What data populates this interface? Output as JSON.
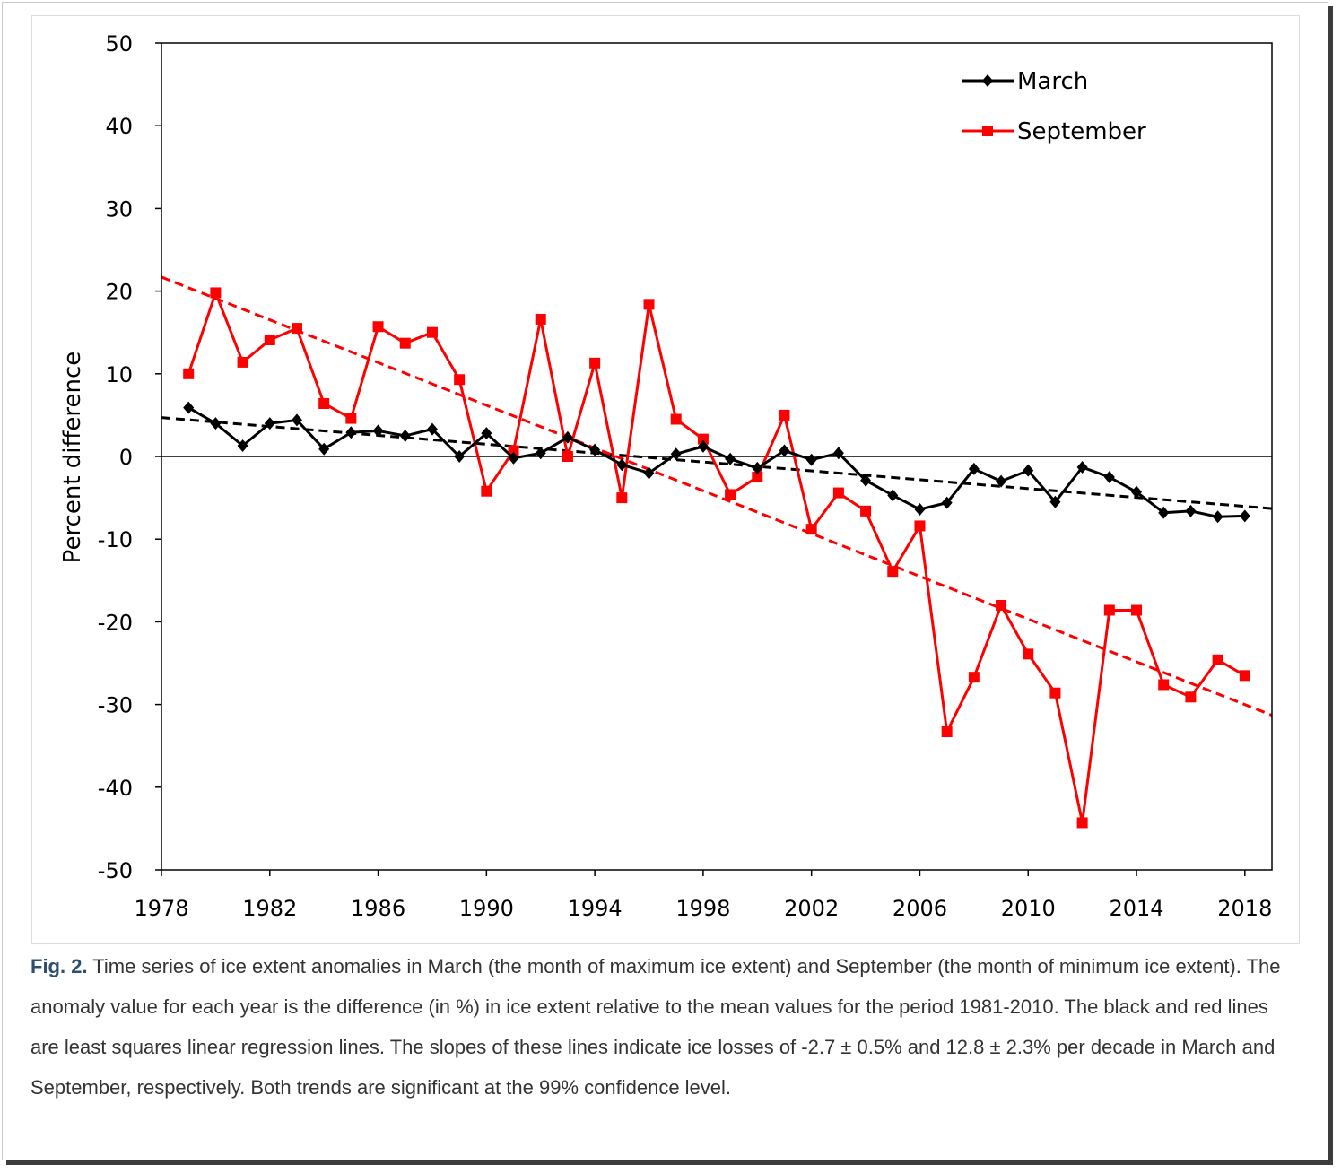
{
  "chart_data": {
    "type": "line",
    "title": "",
    "xlabel": "",
    "ylabel": "Percent difference",
    "xlim": [
      1978,
      2019
    ],
    "ylim": [
      -50,
      50
    ],
    "xticks": [
      1978,
      1982,
      1986,
      1990,
      1994,
      1998,
      2002,
      2006,
      2010,
      2014,
      2018
    ],
    "yticks": [
      50,
      40,
      30,
      20,
      10,
      0,
      -10,
      -20,
      -30,
      -40,
      -50
    ],
    "grid": false,
    "legend_position": "top-right",
    "x": [
      1979,
      1980,
      1981,
      1982,
      1983,
      1984,
      1985,
      1986,
      1987,
      1988,
      1989,
      1990,
      1991,
      1992,
      1993,
      1994,
      1995,
      1996,
      1997,
      1998,
      1999,
      2000,
      2001,
      2002,
      2003,
      2004,
      2005,
      2006,
      2007,
      2008,
      2009,
      2010,
      2011,
      2012,
      2013,
      2014,
      2015,
      2016,
      2017,
      2018
    ],
    "series": [
      {
        "name": "March",
        "color": "#000000",
        "marker": "diamond",
        "values": [
          5.9,
          4.0,
          1.3,
          4.0,
          4.4,
          0.9,
          2.9,
          3.1,
          2.5,
          3.3,
          0.0,
          2.8,
          -0.2,
          0.4,
          2.3,
          0.8,
          -1.0,
          -2.0,
          0.3,
          1.2,
          -0.3,
          -1.4,
          0.7,
          -0.4,
          0.4,
          -2.9,
          -4.7,
          -6.4,
          -5.6,
          -1.5,
          -3.0,
          -1.7,
          -5.5,
          -1.3,
          -2.5,
          -4.3,
          -6.8,
          -6.6,
          -7.3,
          -7.2
        ]
      },
      {
        "name": "September",
        "color": "#ff0000",
        "marker": "square",
        "values": [
          10.0,
          19.8,
          11.4,
          14.1,
          15.5,
          6.4,
          4.6,
          15.7,
          13.7,
          15.0,
          9.3,
          -4.2,
          0.7,
          16.6,
          0.0,
          11.3,
          -5.0,
          18.4,
          4.5,
          2.1,
          -4.6,
          -2.5,
          5.0,
          -8.8,
          -4.4,
          -6.6,
          -13.9,
          -8.4,
          -33.3,
          -26.7,
          -18.0,
          -23.9,
          -28.6,
          -44.3,
          -18.6,
          -18.6,
          -27.6,
          -29.1,
          -24.6,
          -26.5
        ]
      }
    ],
    "trendlines": [
      {
        "series": "March",
        "color": "#000000",
        "style": "dashed",
        "x": [
          1978,
          2019
        ],
        "y": [
          4.7,
          -6.3
        ]
      },
      {
        "series": "September",
        "color": "#ff0000",
        "style": "dashed",
        "x": [
          1978,
          2019
        ],
        "y": [
          21.7,
          -31.3
        ]
      }
    ]
  },
  "caption": {
    "label": "Fig. 2.",
    "text": " Time series of ice extent anomalies in March (the month of maximum ice extent) and September (the month of minimum ice extent). The anomaly value for each year is the difference (in %) in ice extent relative to the mean values for the period 1981-2010. The black and red lines are least squares linear regression lines. The slopes of these lines indicate ice losses of -2.7 ± 0.5% and 12.8 ± 2.3% per decade in March and September, respectively. Both trends are significant at the 99% confidence level."
  }
}
